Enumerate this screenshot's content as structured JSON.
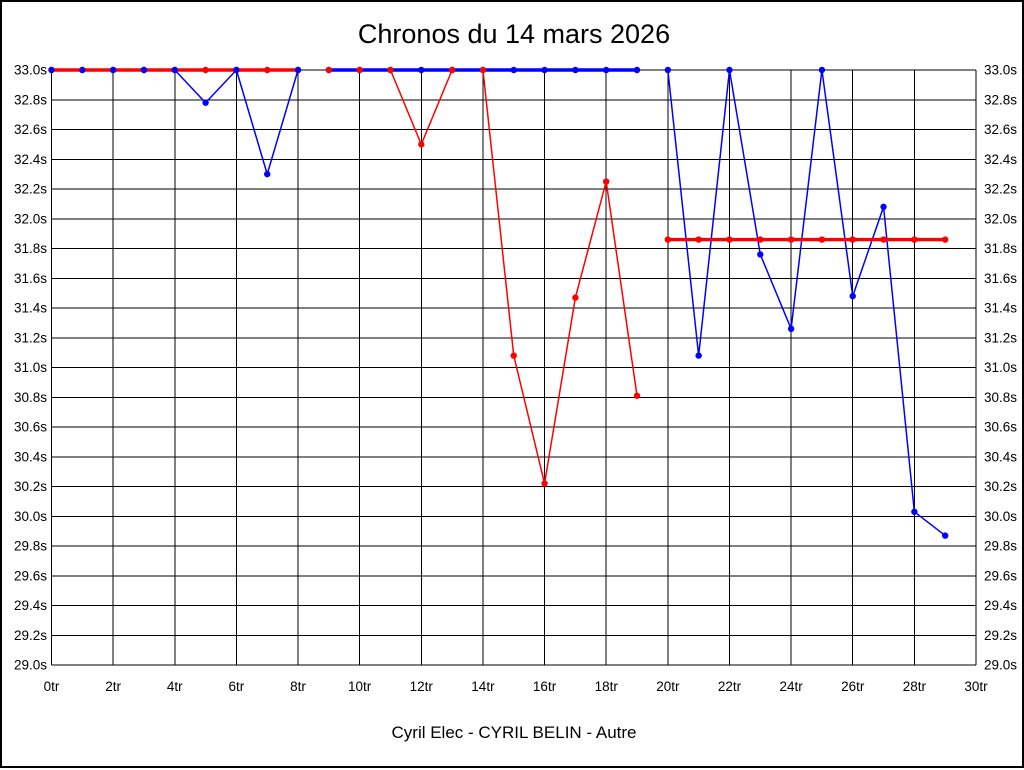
{
  "window": {
    "background": "#ffffff",
    "frame_border_color": "#000000"
  },
  "chart_data": {
    "type": "line",
    "title": "Chronos du 14 mars 2026",
    "caption": "Cyril Elec - CYRIL BELIN - Autre",
    "x_unit": "tr",
    "y_unit": "s",
    "xlim": [
      0,
      30
    ],
    "ylim": [
      29.0,
      33.0
    ],
    "x_tick_step": 2,
    "y_tick_step": 0.2,
    "x_ticks": [
      "0tr",
      "2tr",
      "4tr",
      "6tr",
      "8tr",
      "10tr",
      "12tr",
      "14tr",
      "16tr",
      "18tr",
      "20tr",
      "22tr",
      "24tr",
      "26tr",
      "28tr",
      "30tr"
    ],
    "y_ticks": [
      "33.0s",
      "32.8s",
      "32.6s",
      "32.4s",
      "32.2s",
      "32.0s",
      "31.8s",
      "31.6s",
      "31.4s",
      "31.2s",
      "31.0s",
      "30.8s",
      "30.6s",
      "30.4s",
      "30.2s",
      "30.0s",
      "29.8s",
      "29.6s",
      "29.4s",
      "29.2s",
      "29.0s"
    ],
    "y_axis_sides": [
      "left",
      "right"
    ],
    "grid": true,
    "legend_position": "none",
    "colors": {
      "red": "#ff0000",
      "blue": "#0000ff",
      "grid": "#000000"
    },
    "series": [
      {
        "name": "red-heat-1",
        "color": "red",
        "flat": true,
        "x": [
          0,
          1,
          2,
          3,
          4,
          5,
          6,
          7,
          8
        ],
        "y": [
          33.0,
          33.0,
          33.0,
          33.0,
          33.0,
          33.0,
          33.0,
          33.0,
          33.0
        ]
      },
      {
        "name": "blue-heat-1",
        "color": "blue",
        "flat": false,
        "x": [
          0,
          1,
          2,
          3,
          4,
          5,
          6,
          7,
          8
        ],
        "y": [
          33.0,
          33.0,
          33.0,
          33.0,
          33.0,
          32.78,
          33.0,
          32.3,
          33.0
        ]
      },
      {
        "name": "red-heat-2",
        "color": "red",
        "flat": false,
        "x": [
          9,
          10,
          11,
          12,
          13,
          14,
          15,
          16,
          17,
          18,
          19
        ],
        "y": [
          33.0,
          33.0,
          33.0,
          32.5,
          33.0,
          33.0,
          31.08,
          30.22,
          31.47,
          32.25,
          30.81
        ]
      },
      {
        "name": "blue-heat-2",
        "color": "blue",
        "flat": true,
        "x": [
          9,
          10,
          11,
          12,
          13,
          14,
          15,
          16,
          17,
          18,
          19
        ],
        "y": [
          33.0,
          33.0,
          33.0,
          33.0,
          33.0,
          33.0,
          33.0,
          33.0,
          33.0,
          33.0,
          33.0
        ]
      },
      {
        "name": "blue-heat-3",
        "color": "blue",
        "flat": false,
        "x": [
          20,
          21,
          22,
          23,
          24,
          25,
          26,
          27,
          28,
          29
        ],
        "y": [
          33.0,
          31.08,
          33.0,
          31.76,
          31.26,
          33.0,
          31.48,
          32.08,
          30.03,
          29.87
        ]
      },
      {
        "name": "red-heat-3",
        "color": "red",
        "flat": true,
        "x": [
          20,
          21,
          22,
          23,
          24,
          25,
          26,
          27,
          28,
          29
        ],
        "y": [
          31.86,
          31.86,
          31.86,
          31.86,
          31.86,
          31.86,
          31.86,
          31.86,
          31.86,
          31.86
        ]
      }
    ]
  }
}
